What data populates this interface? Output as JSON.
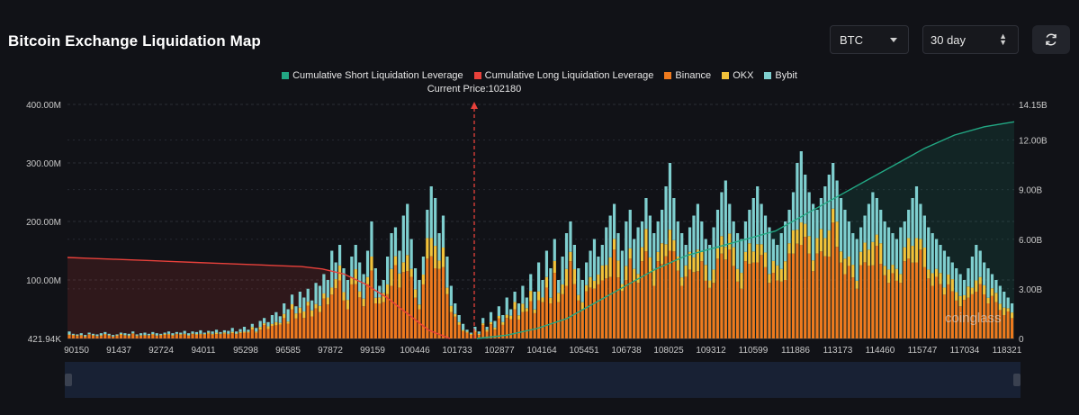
{
  "page": {
    "title": "Bitcoin Exchange Liquidation Map",
    "coin_select": "BTC",
    "range_select": "30 day",
    "watermark": "coinglass"
  },
  "colors": {
    "short_cum": "#22a884",
    "long_cum": "#e8413b",
    "binance": "#ee7a1e",
    "okx": "#f2c23a",
    "bybit": "#7fcfcf"
  },
  "chart_data": {
    "type": "bar",
    "title": "Bitcoin Exchange Liquidation Map",
    "current_price_label": "Current Price:102180",
    "current_price": 102180,
    "x_ticks": [
      "90150",
      "91437",
      "92724",
      "94011",
      "95298",
      "96585",
      "97872",
      "99159",
      "100446",
      "101733",
      "102877",
      "104164",
      "105451",
      "106738",
      "108025",
      "109312",
      "110599",
      "111886",
      "113173",
      "114460",
      "115747",
      "117034",
      "118321"
    ],
    "x_range": [
      90150,
      118321
    ],
    "y_left_ticks": [
      "421.94K",
      "100.00M",
      "200.00M",
      "300.00M",
      "400.00M"
    ],
    "y_left_range": [
      0,
      400000000
    ],
    "y_right_ticks": [
      "0",
      "3.00B",
      "6.00B",
      "9.00B",
      "12.00B",
      "14.15B"
    ],
    "y_right_range": [
      0,
      14150000000
    ],
    "legend": [
      {
        "name": "Cumulative Short Liquidation Leverage",
        "color": "#22a884"
      },
      {
        "name": "Cumulative Long Liquidation Leverage",
        "color": "#e8413b"
      },
      {
        "name": "Binance",
        "color": "#ee7a1e"
      },
      {
        "name": "OKX",
        "color": "#f2c23a"
      },
      {
        "name": "Bybit",
        "color": "#7fcfcf"
      }
    ],
    "bar_totals_M": [
      12,
      8,
      7,
      9,
      6,
      10,
      8,
      7,
      9,
      11,
      8,
      6,
      7,
      10,
      9,
      8,
      12,
      7,
      9,
      10,
      8,
      11,
      9,
      8,
      10,
      12,
      9,
      11,
      10,
      13,
      9,
      12,
      11,
      14,
      10,
      13,
      12,
      15,
      11,
      14,
      13,
      18,
      12,
      16,
      20,
      15,
      25,
      18,
      30,
      35,
      28,
      40,
      45,
      38,
      60,
      50,
      75,
      55,
      80,
      70,
      85,
      65,
      95,
      90,
      110,
      100,
      150,
      130,
      160,
      120,
      100,
      140,
      160,
      130,
      110,
      150,
      200,
      120,
      90,
      100,
      140,
      180,
      190,
      150,
      210,
      230,
      170,
      120,
      100,
      140,
      220,
      260,
      240,
      180,
      210,
      140,
      90,
      60,
      40,
      25,
      15,
      10,
      20,
      12,
      35,
      20,
      45,
      30,
      55,
      40,
      70,
      50,
      80,
      60,
      90,
      70,
      110,
      80,
      130,
      100,
      150,
      120,
      170,
      100,
      140,
      180,
      200,
      160,
      120,
      100,
      130,
      150,
      170,
      140,
      160,
      190,
      210,
      230,
      180,
      150,
      200,
      220,
      170,
      190,
      200,
      240,
      210,
      180,
      200,
      220,
      260,
      300,
      240,
      200,
      180,
      160,
      190,
      210,
      230,
      200,
      170,
      160,
      190,
      220,
      250,
      270,
      230,
      200,
      180,
      170,
      200,
      220,
      240,
      260,
      230,
      210,
      190,
      170,
      160,
      180,
      200,
      220,
      250,
      300,
      320,
      280,
      250,
      230,
      220,
      240,
      260,
      280,
      300,
      270,
      240,
      220,
      200,
      180,
      170,
      190,
      210,
      230,
      250,
      240,
      220,
      200,
      190,
      180,
      170,
      190,
      200,
      220,
      240,
      260,
      230,
      210,
      190,
      180,
      170,
      160,
      150,
      140,
      130,
      120,
      110,
      100,
      120,
      140,
      160,
      150,
      130,
      120,
      110,
      100,
      90,
      80,
      70,
      60
    ],
    "long_cum_B": [
      4.9,
      4.85,
      4.8,
      4.75,
      4.7,
      4.65,
      4.6,
      4.55,
      4.5,
      4.45,
      4.4,
      4.35,
      4.2,
      3.9,
      3.3,
      2.5,
      1.5,
      0.5,
      0
    ],
    "short_cum_B": [
      0,
      0.2,
      0.6,
      1.2,
      2.2,
      3.2,
      4.2,
      5.0,
      5.5,
      6.0,
      6.5,
      7.5,
      8.5,
      9.5,
      10.5,
      11.5,
      12.3,
      12.8,
      13.1
    ]
  }
}
